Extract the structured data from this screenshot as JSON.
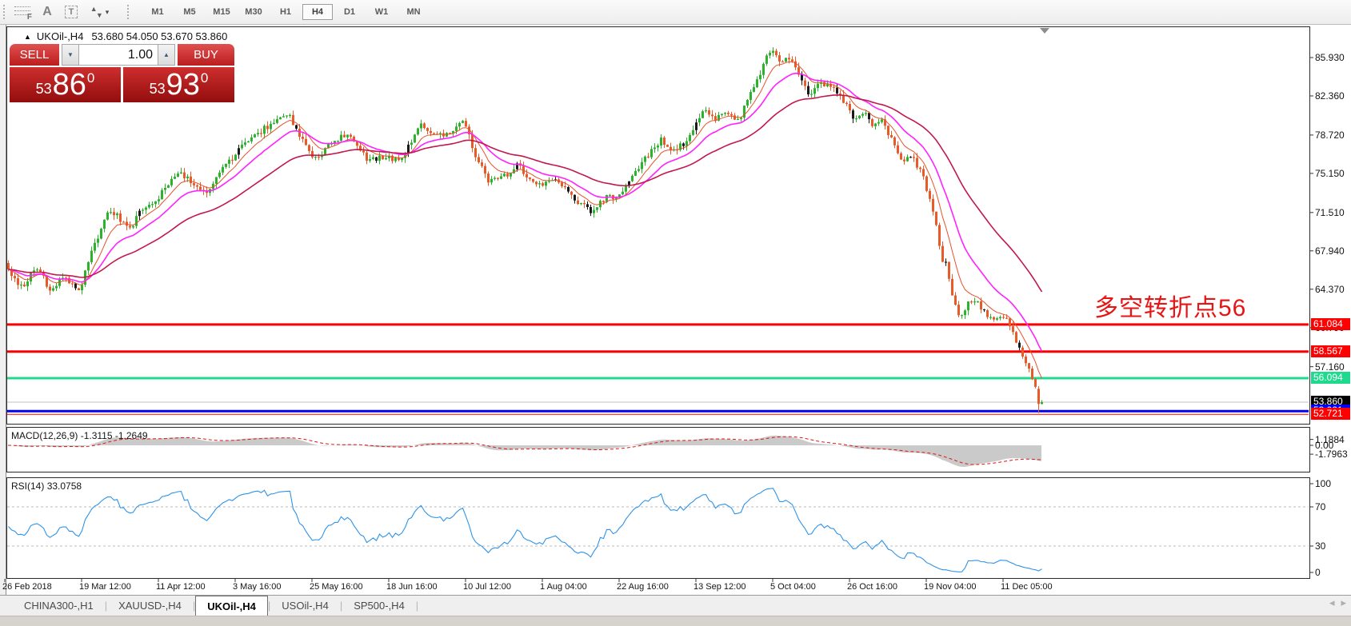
{
  "toolbar": {
    "icons": {
      "fibo_glyph": "F",
      "text_label_glyph": "A",
      "text_tool_glyph": "T",
      "arrow_up_glyph": "▲",
      "arrow_down_glyph": "▼",
      "caret_glyph": "▼"
    },
    "timeframes": [
      "M1",
      "M5",
      "M15",
      "M30",
      "H1",
      "H4",
      "D1",
      "W1",
      "MN"
    ],
    "active_timeframe": "H4"
  },
  "chart_header": {
    "collapse_glyph": "▲",
    "symbol": "UKOil-,H4",
    "ohlc": "53.680 54.050 53.670 53.860"
  },
  "trade_panel": {
    "sell_label": "SELL",
    "buy_label": "BUY",
    "volume": "1.00",
    "spin_down_glyph": "▼",
    "spin_up_glyph": "▲",
    "sell_price": {
      "prefix": "53",
      "big": "86",
      "sup": "0"
    },
    "buy_price": {
      "prefix": "53",
      "big": "93",
      "sup": "0"
    }
  },
  "annotation": {
    "text": "多空转折点56",
    "color": "#E81414"
  },
  "tabs": {
    "items": [
      "CHINA300-,H1",
      "XAUUSD-,H4",
      "UKOil-,H4",
      "USOil-,H4",
      "SP500-,H4"
    ],
    "active": "UKOil-,H4",
    "scroll_left_glyph": "◂",
    "scroll_right_glyph": "▸"
  },
  "chart_data": {
    "type": "candlestick",
    "symbol": "UKOil-,H4",
    "current_bar": {
      "open": 53.68,
      "high": 54.05,
      "low": 53.67,
      "close": 53.86
    },
    "price_axis_range_visible": [
      51.8,
      88.8
    ],
    "price_axis_ticks": [
      {
        "text": "85.930",
        "value": 85.93
      },
      {
        "text": "82.360",
        "value": 82.36
      },
      {
        "text": "78.720",
        "value": 78.72
      },
      {
        "text": "75.150",
        "value": 75.15
      },
      {
        "text": "71.510",
        "value": 71.51
      },
      {
        "text": "67.940",
        "value": 67.94
      },
      {
        "text": "64.370",
        "value": 64.37
      },
      {
        "text": "60.790",
        "value": 60.79
      },
      {
        "text": "57.160",
        "value": 57.16
      }
    ],
    "hlines": [
      {
        "price": 61.084,
        "label": "61.084",
        "color": "#FF0000",
        "width": 3,
        "tag_bg": "#FF0000"
      },
      {
        "price": 58.567,
        "label": "58.567",
        "color": "#FF0000",
        "width": 3,
        "tag_bg": "#FF0000"
      },
      {
        "price": 56.094,
        "label": "56.094",
        "color": "#1FD98D",
        "width": 3,
        "tag_bg": "#1FD98D"
      },
      {
        "price": 53.86,
        "label": "53.860",
        "color": "#C0C0C0",
        "width": 1,
        "tag_bg": "#000000"
      },
      {
        "price": 53.021,
        "label": "53.021",
        "color": "#0000F0",
        "width": 3,
        "tag_bg": "#0000FF"
      },
      {
        "price": 52.721,
        "label": "52.721",
        "color": "#FF0000",
        "width": 1,
        "tag_bg": "#FF0000"
      }
    ],
    "time_axis_labels": [
      "26 Feb 2018",
      "19 Mar 12:00",
      "11 Apr 12:00",
      "3 May 16:00",
      "25 May 16:00",
      "18 Jun 16:00",
      "10 Jul 12:00",
      "1 Aug 04:00",
      "22 Aug 16:00",
      "13 Sep 12:00",
      "5 Oct 04:00",
      "26 Oct 16:00",
      "19 Nov 04:00",
      "11 Dec 05:00"
    ],
    "price_path_anchors": [
      [
        8,
        66.8
      ],
      [
        27,
        64.3
      ],
      [
        48,
        66.6
      ],
      [
        65,
        63.9
      ],
      [
        81,
        65.6
      ],
      [
        102,
        64.4
      ],
      [
        118,
        68.3
      ],
      [
        140,
        71.9
      ],
      [
        162,
        69.8
      ],
      [
        178,
        71.7
      ],
      [
        200,
        73.0
      ],
      [
        225,
        75.3
      ],
      [
        258,
        73.4
      ],
      [
        290,
        76.5
      ],
      [
        312,
        78.1
      ],
      [
        345,
        80.1
      ],
      [
        360,
        80.8
      ],
      [
        375,
        78.9
      ],
      [
        395,
        76.3
      ],
      [
        420,
        78.3
      ],
      [
        440,
        78.9
      ],
      [
        462,
        76.2
      ],
      [
        480,
        76.8
      ],
      [
        500,
        76.3
      ],
      [
        528,
        79.7
      ],
      [
        545,
        78.5
      ],
      [
        560,
        78.8
      ],
      [
        582,
        79.9
      ],
      [
        598,
        76.5
      ],
      [
        612,
        74.3
      ],
      [
        632,
        74.9
      ],
      [
        650,
        75.9
      ],
      [
        672,
        74.0
      ],
      [
        700,
        74.6
      ],
      [
        723,
        72.4
      ],
      [
        743,
        71.6
      ],
      [
        762,
        73.1
      ],
      [
        770,
        72.5
      ],
      [
        788,
        74.6
      ],
      [
        812,
        76.8
      ],
      [
        828,
        78.4
      ],
      [
        843,
        77.3
      ],
      [
        858,
        78.0
      ],
      [
        880,
        80.9
      ],
      [
        898,
        80.2
      ],
      [
        912,
        80.8
      ],
      [
        925,
        80.1
      ],
      [
        940,
        82.5
      ],
      [
        953,
        84.6
      ],
      [
        962,
        86.3
      ],
      [
        968,
        86.9
      ],
      [
        978,
        85.3
      ],
      [
        988,
        85.9
      ],
      [
        1000,
        84.2
      ],
      [
        1012,
        82.4
      ],
      [
        1025,
        83.3
      ],
      [
        1040,
        83.6
      ],
      [
        1055,
        81.9
      ],
      [
        1070,
        80.2
      ],
      [
        1082,
        80.8
      ],
      [
        1092,
        79.6
      ],
      [
        1105,
        80.1
      ],
      [
        1118,
        77.9
      ],
      [
        1130,
        76.1
      ],
      [
        1142,
        76.9
      ],
      [
        1155,
        74.9
      ],
      [
        1168,
        71.9
      ],
      [
        1178,
        67.3
      ],
      [
        1185,
        66.9
      ],
      [
        1192,
        63.9
      ],
      [
        1200,
        61.4
      ],
      [
        1210,
        62.9
      ],
      [
        1222,
        63.6
      ],
      [
        1232,
        62.2
      ],
      [
        1245,
        61.3
      ],
      [
        1258,
        61.9
      ],
      [
        1268,
        60.3
      ],
      [
        1278,
        58.3
      ],
      [
        1288,
        56.9
      ],
      [
        1296,
        55.3
      ],
      [
        1306,
        53.9
      ]
    ],
    "moving_averages": [
      {
        "name": "fast",
        "period": 8,
        "color": "#E8512A",
        "width": 1
      },
      {
        "name": "medium",
        "period": 18,
        "color": "#FF22FF",
        "width": 1.6
      },
      {
        "name": "slow",
        "period": 45,
        "color": "#C2184C",
        "width": 1.6
      }
    ],
    "colors": {
      "candle_up": "#2CB22C",
      "candle_down": "#E85A28",
      "candle_black": "#1A1A1A",
      "macd_fill": "#CACACA",
      "macd_signal": "#E01515",
      "rsi_line": "#2E93E8",
      "rsi_dash": "#BBBBBB"
    },
    "macd": {
      "name": "MACD(12,26,9)",
      "value_main": "-1.3115",
      "value_signal": "-1.2649",
      "axis_ticks": [
        {
          "text": "1.1884",
          "value": 1.1884
        },
        {
          "text": "0.00",
          "value": 0
        },
        {
          "text": "-1.7963",
          "value": -1.7963
        }
      ]
    },
    "rsi": {
      "name": "RSI(14)",
      "value": "33.0758",
      "levels": [
        70,
        30
      ],
      "axis_ticks": [
        {
          "text": "100",
          "value": 100
        },
        {
          "text": "70",
          "value": 70
        },
        {
          "text": "30",
          "value": 30
        },
        {
          "text": "0",
          "value": 0
        }
      ]
    }
  }
}
